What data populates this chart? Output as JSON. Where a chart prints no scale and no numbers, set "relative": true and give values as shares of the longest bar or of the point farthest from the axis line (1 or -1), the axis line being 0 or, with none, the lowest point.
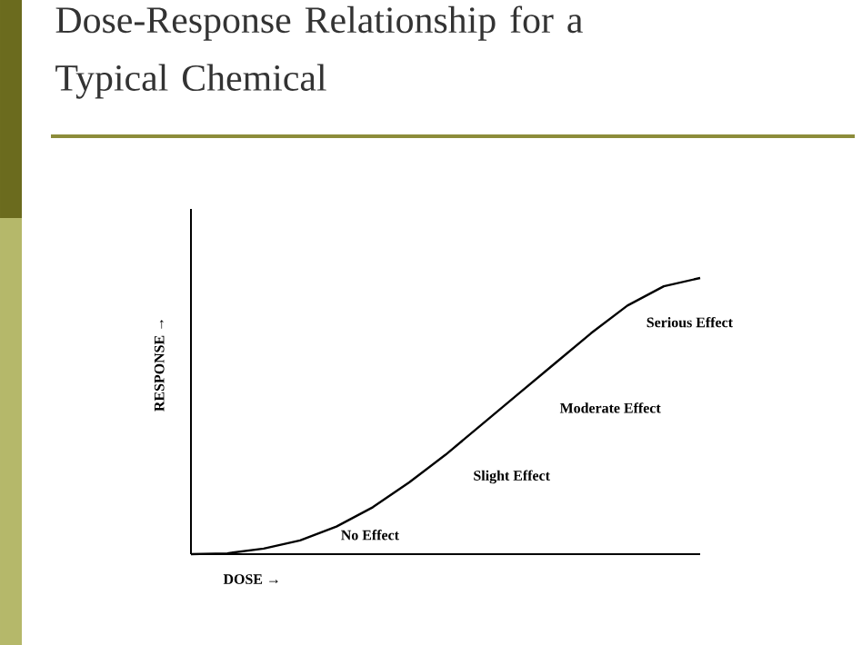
{
  "chart_data": {
    "type": "line",
    "title": "Dose-Response Relationship for a Typical Chemical",
    "xlabel": "DOSE →",
    "ylabel": "RESPONSE →",
    "relative": true,
    "color": "#000000",
    "categories": [
      null,
      null,
      null,
      null,
      null,
      null,
      null,
      null,
      null,
      null,
      null,
      null,
      null,
      null,
      null
    ],
    "values": [
      0,
      0.003,
      0.02,
      0.05,
      0.1,
      0.17,
      0.26,
      0.36,
      0.47,
      0.58,
      0.69,
      0.8,
      0.9,
      0.97,
      1
    ],
    "annotations": [
      "No Effect",
      "Slight Effect",
      "Moderate Effect",
      "Serious Effect"
    ]
  }
}
